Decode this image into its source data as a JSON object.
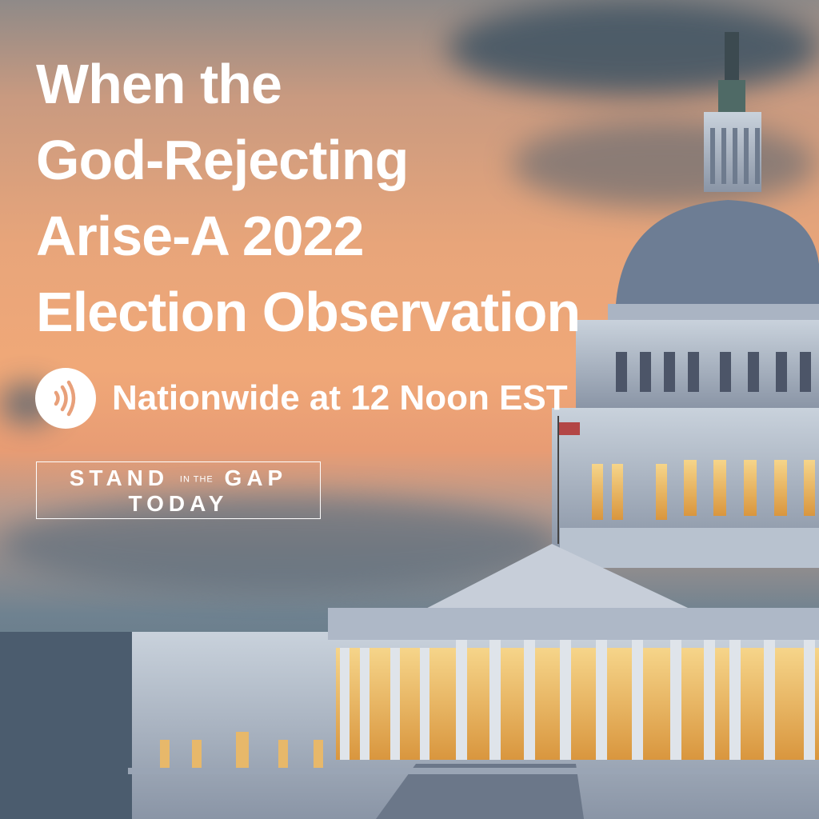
{
  "headline": {
    "lines": [
      "When the",
      "God-Rejecting",
      "Arise-A 2022",
      "Election Observation"
    ]
  },
  "subtitle": {
    "icon": "broadcast-waves-icon",
    "text": "Nationwide at 12 Noon EST"
  },
  "logo": {
    "stand": "STAND",
    "in_the": "IN THE",
    "gap": "GAP",
    "today": "TODAY"
  },
  "colors": {
    "text": "#ffffff",
    "sky_warm": "#f0a878",
    "sky_cool": "#4f6476"
  }
}
